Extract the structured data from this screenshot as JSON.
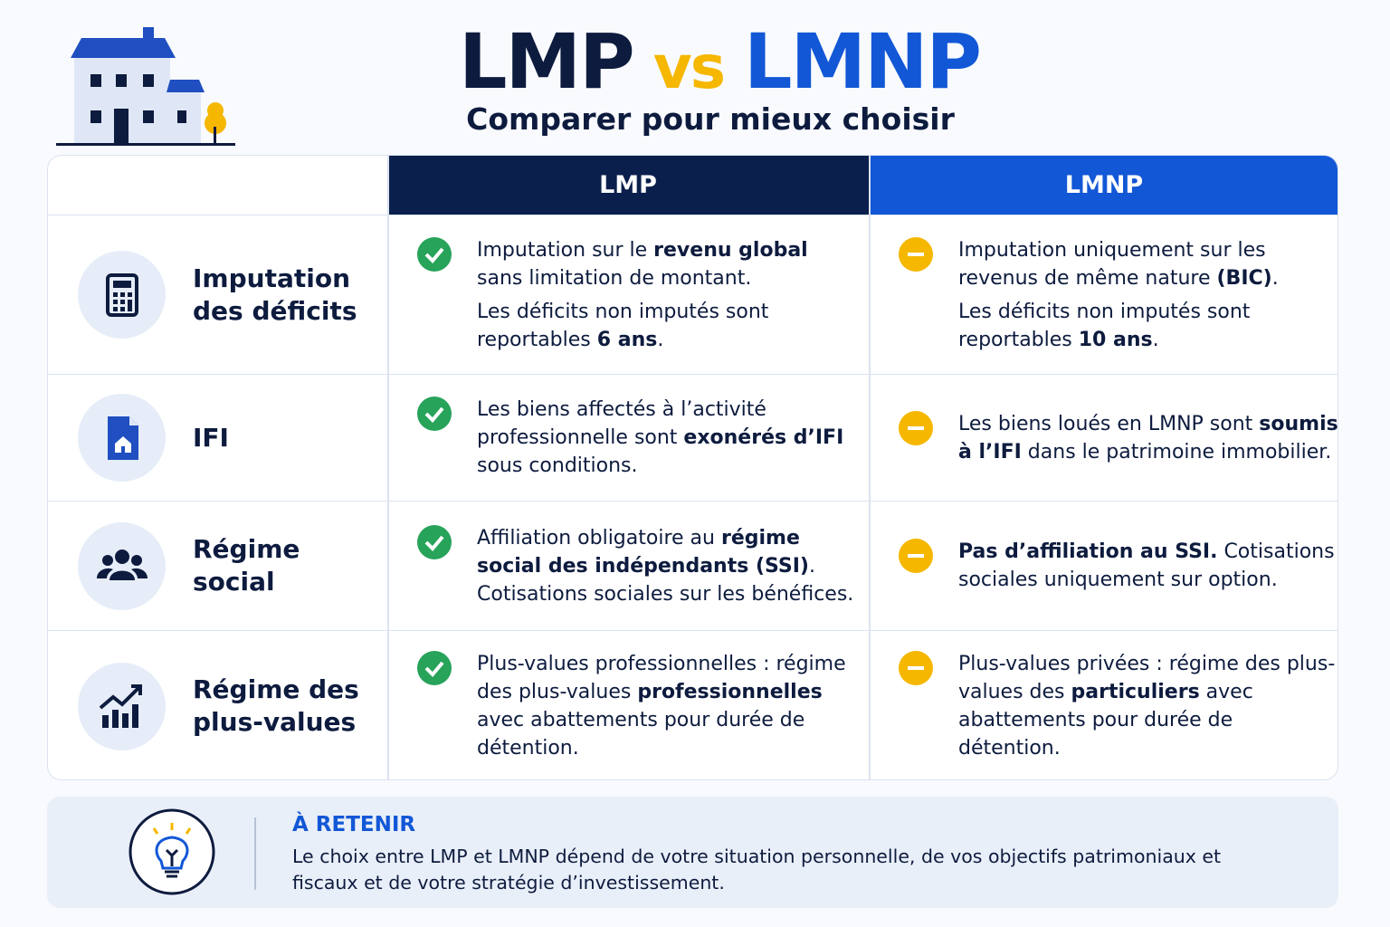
{
  "header": {
    "title": {
      "left": "LMP",
      "middle": "vs",
      "right": "LMNP"
    },
    "subtitle": "Comparer pour mieux choisir"
  },
  "table": {
    "columns": [
      "LMP",
      "LMNP"
    ],
    "rows": [
      {
        "label": [
          "Imputation",
          "des déficits"
        ],
        "lmp": [
          [
            {
              "text": "Imputation sur le "
            },
            {
              "text": "revenu global",
              "bold": true
            },
            {
              "text": " sans limitation de montant."
            }
          ],
          [
            {
              "text": "Les déficits non imputés sont reportables "
            },
            {
              "text": "6 ans",
              "bold": true
            },
            {
              "text": "."
            }
          ]
        ],
        "lmnp": [
          [
            {
              "text": "Imputation uniquement sur les revenus de même nature "
            },
            {
              "text": "(BIC)",
              "bold": true
            },
            {
              "text": "."
            }
          ],
          [
            {
              "text": "Les déficits non imputés sont reportables "
            },
            {
              "text": "10 ans",
              "bold": true
            },
            {
              "text": "."
            }
          ]
        ]
      },
      {
        "label": [
          "IFI"
        ],
        "lmp": [
          [
            {
              "text": "Les biens affectés à l’activité professionnelle sont "
            },
            {
              "text": "exonérés d’IFI",
              "bold": true
            },
            {
              "text": " sous conditions."
            }
          ]
        ],
        "lmnp": [
          [
            {
              "text": "Les biens loués en LMNP sont "
            },
            {
              "text": "soumis à l’IFI",
              "bold": true
            },
            {
              "text": " dans le patrimoine immobilier."
            }
          ]
        ]
      },
      {
        "label": [
          "Régime",
          "social"
        ],
        "lmp": [
          [
            {
              "text": "Affiliation obligatoire au "
            },
            {
              "text": "régime social des indépendants (SSI)",
              "bold": true
            },
            {
              "text": ". Cotisations sociales sur les bénéfices."
            }
          ]
        ],
        "lmnp": [
          [
            {
              "text": "Pas d’affiliation au SSI.",
              "bold": true
            },
            {
              "text": " Cotisations sociales uniquement sur option."
            }
          ]
        ]
      },
      {
        "label": [
          "Régime des",
          "plus-values"
        ],
        "lmp": [
          [
            {
              "text": "Plus-values professionnelles : régime des plus-values "
            },
            {
              "text": "professionnelles",
              "bold": true
            },
            {
              "text": " avec abattements pour durée de détention."
            }
          ]
        ],
        "lmnp": [
          [
            {
              "text": "Plus-values privées : régime des plus-values des "
            },
            {
              "text": "particuliers",
              "bold": true
            },
            {
              "text": " avec abattements pour durée de détention."
            }
          ]
        ]
      }
    ]
  },
  "note": {
    "title": "À RETENIR",
    "text": "Le choix entre LMP et LMNP dépend de votre situation personnelle, de vos objectifs patrimoniaux et fiscaux et de votre stratégie d’investissement."
  }
}
